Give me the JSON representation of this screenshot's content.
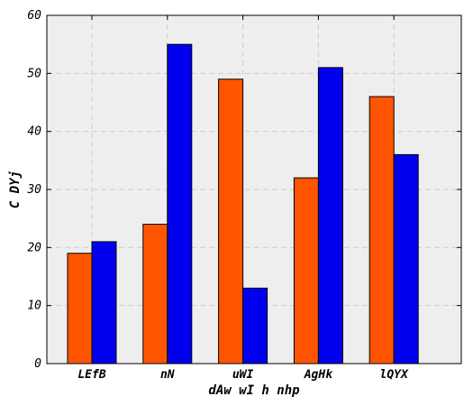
{
  "chart_data": {
    "type": "bar",
    "categories": [
      "LEfB",
      "nN",
      "uWI",
      "AgHk",
      "lQYX"
    ],
    "series": [
      {
        "color": "#ff5500",
        "values": [
          19,
          24,
          49,
          32,
          46
        ]
      },
      {
        "color": "#0000ee",
        "values": [
          21,
          55,
          13,
          51,
          36
        ]
      }
    ],
    "xlabel": "dAw wI h nhp",
    "ylabel": "C DYj",
    "ylim": [
      0,
      60
    ],
    "yticks": [
      "0",
      "10",
      "20",
      "30",
      "40",
      "50",
      "60"
    ],
    "grid": true,
    "background": "#eeeeee",
    "grid_color": "#cccccc"
  }
}
